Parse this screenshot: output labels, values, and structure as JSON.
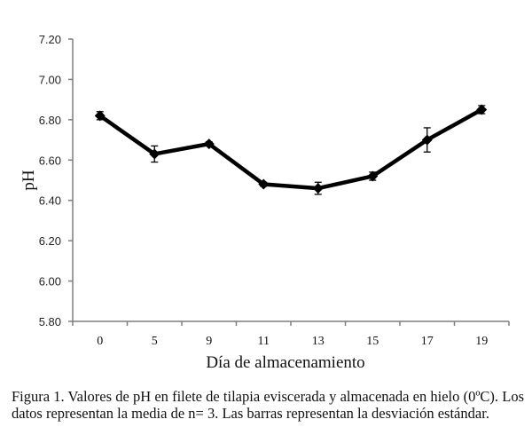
{
  "chart_data": {
    "type": "line",
    "title": "",
    "xlabel": "Día de almacenamiento",
    "ylabel": "pH",
    "categories": [
      "0",
      "5",
      "9",
      "11",
      "13",
      "15",
      "17",
      "19"
    ],
    "series": [
      {
        "name": "pH",
        "values": [
          6.82,
          6.63,
          6.68,
          6.48,
          6.46,
          6.52,
          6.7,
          6.85
        ],
        "error": [
          0.02,
          0.04,
          0.01,
          0.01,
          0.03,
          0.02,
          0.06,
          0.02
        ]
      }
    ],
    "ylim": [
      5.8,
      7.2
    ],
    "yticks": [
      "5.80",
      "6.00",
      "6.20",
      "6.40",
      "6.60",
      "6.80",
      "7.00",
      "7.20"
    ],
    "grid": false,
    "legend": "none",
    "line_color": "#000000",
    "marker": "diamond"
  },
  "caption": "Figura 1. Valores de pH en filete de tilapia eviscerada y almacenada en hielo (0ºC). Los datos representan la media de n= 3. Las barras representan la desviación estándar."
}
